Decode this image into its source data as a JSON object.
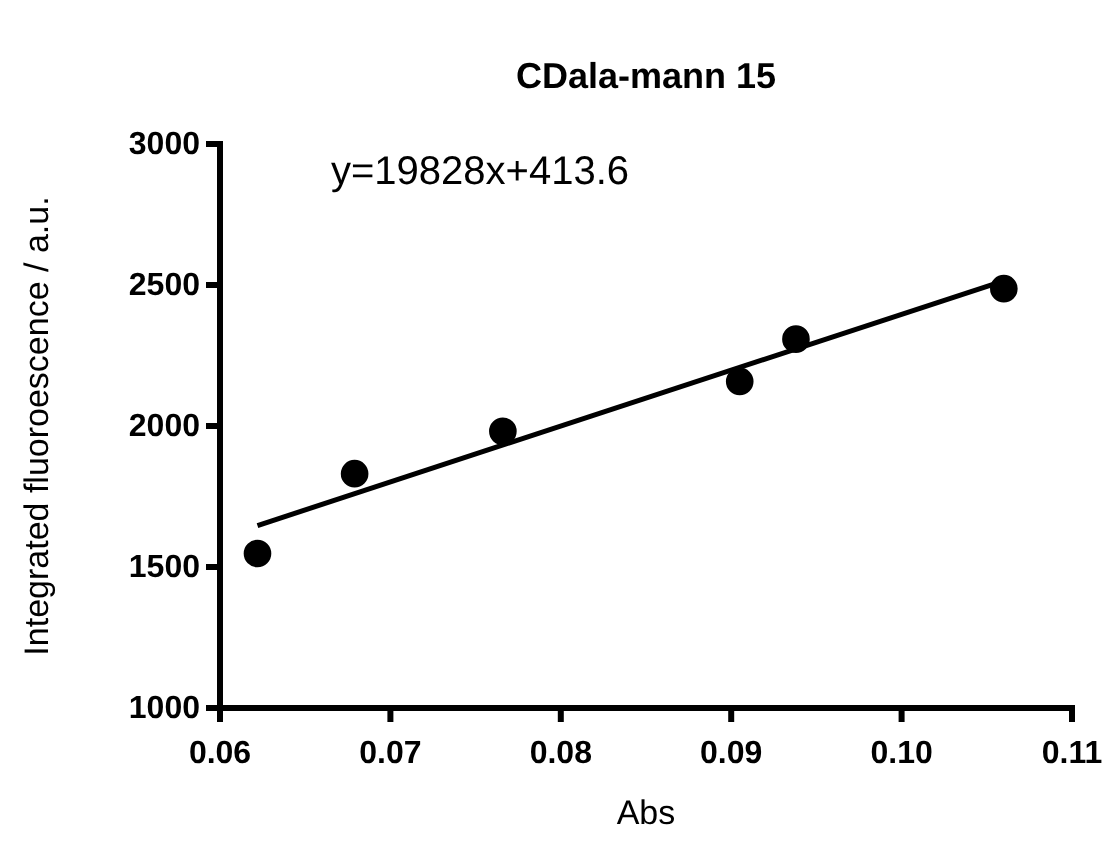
{
  "chart_data": {
    "type": "scatter",
    "title": "CDala-mann 15",
    "xlabel": "Abs",
    "ylabel": "Integrated fluoroescence / a.u.",
    "annotations": [
      "y=19828x+413.6"
    ],
    "series": [
      {
        "marker": "circle",
        "color": "#000000",
        "x": [
          0.0622,
          0.0679,
          0.0766,
          0.0905,
          0.0938,
          0.106
        ],
        "values": [
          1548,
          1831,
          1981,
          2158,
          2308,
          2487
        ]
      },
      {
        "type": "line",
        "color": "#000000",
        "x": [
          0.0622,
          0.106
        ],
        "values": [
          1647,
          2515
        ]
      }
    ],
    "line_style": "solid",
    "xlim": [
      0.06,
      0.11
    ],
    "xticks": [
      {
        "value": 0.06,
        "label": "0.06"
      },
      {
        "value": 0.07,
        "label": "0.07"
      },
      {
        "value": 0.08,
        "label": "0.08"
      },
      {
        "value": 0.09,
        "label": "0.09"
      },
      {
        "value": 0.1,
        "label": "0.10"
      },
      {
        "value": 0.11,
        "label": "0.11"
      }
    ],
    "ylim": [
      1000,
      3000
    ],
    "yticks": [
      1000,
      1500,
      2000,
      2500,
      3000
    ],
    "grid": false
  }
}
